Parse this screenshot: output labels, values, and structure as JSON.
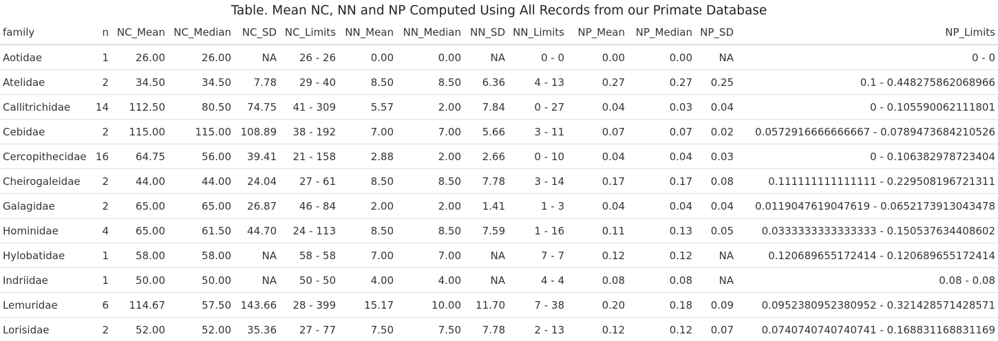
{
  "title": "Table. Mean NC, NN and NP Computed Using All Records from our Primate Database",
  "columns": [
    "family",
    "n",
    "NC_Mean",
    "NC_Median",
    "NC_SD",
    "NC_Limits",
    "NN_Mean",
    "NN_Median",
    "NN_SD",
    "NN_Limits",
    "NP_Mean",
    "NP_Median",
    "NP_SD",
    "NP_Limits"
  ],
  "rows": [
    [
      "Aotidae",
      "1",
      "26.00",
      "26.00",
      "NA",
      "26 - 26",
      "0.00",
      "0.00",
      "NA",
      "0 - 0",
      "0.00",
      "0.00",
      "NA",
      "0 - 0"
    ],
    [
      "Atelidae",
      "2",
      "34.50",
      "34.50",
      "7.78",
      "29 - 40",
      "8.50",
      "8.50",
      "6.36",
      "4 - 13",
      "0.27",
      "0.27",
      "0.25",
      "0.1 - 0.448275862068966"
    ],
    [
      "Callitrichidae",
      "14",
      "112.50",
      "80.50",
      "74.75",
      "41 - 309",
      "5.57",
      "2.00",
      "7.84",
      "0 - 27",
      "0.04",
      "0.03",
      "0.04",
      "0 - 0.105590062111801"
    ],
    [
      "Cebidae",
      "2",
      "115.00",
      "115.00",
      "108.89",
      "38 - 192",
      "7.00",
      "7.00",
      "5.66",
      "3 - 11",
      "0.07",
      "0.07",
      "0.02",
      "0.0572916666666667 - 0.0789473684210526"
    ],
    [
      "Cercopithecidae",
      "16",
      "64.75",
      "56.00",
      "39.41",
      "21 - 158",
      "2.88",
      "2.00",
      "2.66",
      "0 - 10",
      "0.04",
      "0.04",
      "0.03",
      "0 - 0.106382978723404"
    ],
    [
      "Cheirogaleidae",
      "2",
      "44.00",
      "44.00",
      "24.04",
      "27 - 61",
      "8.50",
      "8.50",
      "7.78",
      "3 - 14",
      "0.17",
      "0.17",
      "0.08",
      "0.111111111111111 - 0.229508196721311"
    ],
    [
      "Galagidae",
      "2",
      "65.00",
      "65.00",
      "26.87",
      "46 - 84",
      "2.00",
      "2.00",
      "1.41",
      "1 - 3",
      "0.04",
      "0.04",
      "0.04",
      "0.0119047619047619 - 0.0652173913043478"
    ],
    [
      "Hominidae",
      "4",
      "65.00",
      "61.50",
      "44.70",
      "24 - 113",
      "8.50",
      "8.50",
      "7.59",
      "1 - 16",
      "0.11",
      "0.13",
      "0.05",
      "0.0333333333333333 - 0.150537634408602"
    ],
    [
      "Hylobatidae",
      "1",
      "58.00",
      "58.00",
      "NA",
      "58 - 58",
      "7.00",
      "7.00",
      "NA",
      "7 - 7",
      "0.12",
      "0.12",
      "NA",
      "0.120689655172414 - 0.120689655172414"
    ],
    [
      "Indriidae",
      "1",
      "50.00",
      "50.00",
      "NA",
      "50 - 50",
      "4.00",
      "4.00",
      "NA",
      "4 - 4",
      "0.08",
      "0.08",
      "NA",
      "0.08 - 0.08"
    ],
    [
      "Lemuridae",
      "6",
      "114.67",
      "57.50",
      "143.66",
      "28 - 399",
      "15.17",
      "10.00",
      "11.70",
      "7 - 38",
      "0.20",
      "0.18",
      "0.09",
      "0.0952380952380952 - 0.321428571428571"
    ],
    [
      "Lorisidae",
      "2",
      "52.00",
      "52.00",
      "35.36",
      "27 - 77",
      "7.50",
      "7.50",
      "7.78",
      "2 - 13",
      "0.12",
      "0.12",
      "0.07",
      "0.0740740740740741 - 0.168831168831169"
    ]
  ]
}
